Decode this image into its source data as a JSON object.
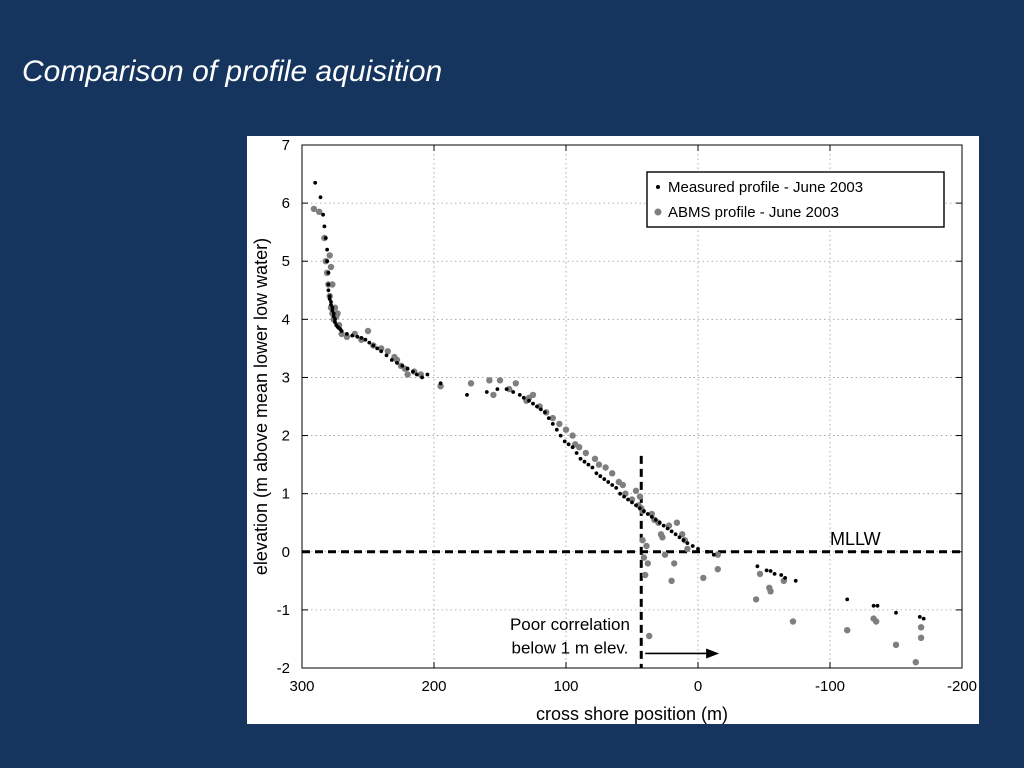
{
  "slide": {
    "title": "Comparison of profile aquisition"
  },
  "chart_data": {
    "type": "scatter",
    "title": "",
    "xlabel": "cross shore position (m)",
    "ylabel": "elevation (m above mean lower low water)",
    "xlim": [
      300,
      -200
    ],
    "ylim": [
      -2,
      7
    ],
    "x_reversed": true,
    "x_ticks": [
      300,
      200,
      100,
      0,
      -100,
      -200
    ],
    "x_tick_labels": [
      "300",
      "200",
      "100",
      "0",
      "-100",
      "-200"
    ],
    "y_ticks": [
      -2,
      -1,
      0,
      1,
      2,
      3,
      4,
      5,
      6,
      7
    ],
    "y_tick_labels": [
      "-2",
      "-1",
      "0",
      "1",
      "2",
      "3",
      "4",
      "5",
      "6",
      "7"
    ],
    "grid": true,
    "legend_position": "top-right",
    "series": [
      {
        "name": "Measured profile - June 2003",
        "color": "#000000",
        "marker": "small-dot",
        "x": [
          290,
          286,
          284,
          283,
          282,
          281,
          281,
          280,
          280,
          280,
          279,
          279,
          278,
          278,
          277,
          277,
          276,
          276,
          275,
          275,
          274,
          273,
          272,
          271,
          270,
          266,
          262,
          258,
          255,
          252,
          249,
          246,
          243,
          240,
          236,
          232,
          228,
          224,
          220,
          216,
          213,
          209,
          205,
          195,
          175,
          160,
          152,
          145,
          140,
          135,
          132,
          128,
          125,
          122,
          119,
          116,
          113,
          110,
          107,
          104,
          101,
          98,
          95,
          92,
          89,
          86,
          83,
          80,
          77,
          74,
          71,
          68,
          65,
          62,
          59,
          56,
          53,
          50,
          47,
          44,
          41,
          38,
          35,
          32,
          29,
          26,
          23,
          20,
          17,
          14,
          11,
          8,
          4,
          0,
          -7,
          -12,
          -45,
          -52,
          -55,
          -58,
          -63,
          -66,
          -74,
          -113,
          -133,
          -136,
          -150,
          -168,
          -171
        ],
        "y": [
          6.35,
          6.1,
          5.8,
          5.6,
          5.4,
          5.2,
          5.0,
          4.8,
          4.6,
          4.5,
          4.4,
          4.35,
          4.3,
          4.25,
          4.2,
          4.15,
          4.1,
          4.05,
          4.0,
          3.95,
          3.9,
          3.87,
          3.85,
          3.83,
          3.8,
          3.75,
          3.72,
          3.7,
          3.68,
          3.65,
          3.6,
          3.55,
          3.5,
          3.45,
          3.38,
          3.3,
          3.25,
          3.2,
          3.15,
          3.1,
          3.05,
          3.0,
          3.05,
          2.9,
          2.7,
          2.75,
          2.8,
          2.8,
          2.75,
          2.7,
          2.65,
          2.6,
          2.55,
          2.5,
          2.45,
          2.4,
          2.3,
          2.2,
          2.1,
          2.0,
          1.9,
          1.85,
          1.8,
          1.7,
          1.6,
          1.55,
          1.5,
          1.45,
          1.35,
          1.3,
          1.25,
          1.2,
          1.15,
          1.1,
          1.0,
          0.95,
          0.9,
          0.85,
          0.8,
          0.75,
          0.7,
          0.65,
          0.6,
          0.55,
          0.5,
          0.45,
          0.4,
          0.35,
          0.3,
          0.25,
          0.2,
          0.15,
          0.1,
          0.05,
          0.0,
          -0.05,
          -0.25,
          -0.32,
          -0.33,
          -0.38,
          -0.4,
          -0.45,
          -0.5,
          -0.82,
          -0.93,
          -0.93,
          -1.05,
          -1.12,
          -1.15
        ]
      },
      {
        "name": "ABMS profile - June 2003",
        "color": "#7f7f7f",
        "marker": "large-dot",
        "x": [
          291,
          287,
          283,
          282,
          281,
          280,
          279,
          279,
          278,
          278,
          277,
          277,
          276,
          275,
          274,
          273,
          272,
          270,
          266,
          260,
          255,
          250,
          246,
          240,
          235,
          230,
          228,
          225,
          222,
          220,
          215,
          210,
          195,
          172,
          158,
          155,
          150,
          143,
          138,
          130,
          128,
          125,
          120,
          115,
          110,
          105,
          100,
          95,
          93,
          90,
          85,
          78,
          75,
          70,
          65,
          60,
          57,
          55,
          50,
          47,
          45,
          44,
          43,
          42,
          42,
          41,
          40,
          39,
          38,
          37,
          35,
          33,
          30,
          28,
          27,
          25,
          22,
          20,
          18,
          16,
          12,
          10,
          8,
          -4,
          -15,
          -15,
          -44,
          -47,
          -54,
          -55,
          -65,
          -72,
          -113,
          -133,
          -135,
          -150,
          -165,
          -169,
          -169
        ],
        "y": [
          5.9,
          5.85,
          5.4,
          5.0,
          4.8,
          4.6,
          4.4,
          5.1,
          4.2,
          4.9,
          4.1,
          4.6,
          4.0,
          4.2,
          4.05,
          4.1,
          3.9,
          3.75,
          3.7,
          3.75,
          3.65,
          3.8,
          3.55,
          3.5,
          3.45,
          3.35,
          3.3,
          3.2,
          3.15,
          3.05,
          3.1,
          3.05,
          2.85,
          2.9,
          2.95,
          2.7,
          2.95,
          2.8,
          2.9,
          2.6,
          2.65,
          2.7,
          2.5,
          2.4,
          2.3,
          2.2,
          2.1,
          2.0,
          1.85,
          1.8,
          1.7,
          1.6,
          1.5,
          1.45,
          1.35,
          1.2,
          1.15,
          1.0,
          0.9,
          1.05,
          0.8,
          0.95,
          0.75,
          0.7,
          0.2,
          -0.1,
          -0.4,
          0.1,
          -0.2,
          -1.45,
          0.65,
          0.55,
          0.5,
          0.3,
          0.25,
          -0.05,
          0.45,
          -0.5,
          -0.2,
          0.5,
          0.3,
          0.2,
          0.05,
          -0.45,
          -0.05,
          -0.3,
          -0.82,
          -0.38,
          -0.62,
          -0.68,
          -0.5,
          -1.2,
          -1.35,
          -1.15,
          -1.2,
          -1.6,
          -1.9,
          -1.3,
          -1.48
        ]
      }
    ],
    "annotations": [
      {
        "text": "MLLW",
        "kind": "reference-line-label"
      },
      {
        "text": "Poor correlation",
        "kind": "callout"
      },
      {
        "text": "below 1 m elev.",
        "kind": "callout"
      }
    ],
    "reference_lines": [
      {
        "orientation": "horizontal",
        "y": 0,
        "style": "dashed",
        "label": "MLLW"
      },
      {
        "orientation": "vertical",
        "x": 43,
        "y_range": [
          -2,
          1.65
        ],
        "style": "dashed"
      }
    ],
    "arrow": {
      "from_x": 40,
      "to_x": -16,
      "y": -1.75
    }
  }
}
